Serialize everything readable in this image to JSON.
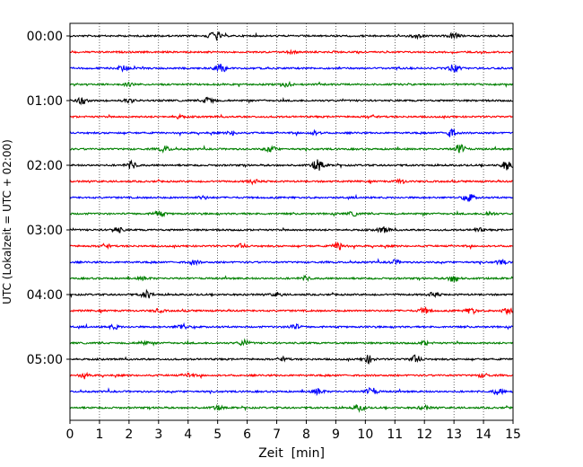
{
  "chart_data": {
    "type": "line",
    "title": "",
    "xlabel": "Zeit  [min]",
    "ylabel": "UTC (Lokalzeit = UTC + 02:00)",
    "xlim": [
      0,
      15
    ],
    "x_ticks": [
      "0",
      "1",
      "2",
      "3",
      "4",
      "5",
      "6",
      "7",
      "8",
      "9",
      "10",
      "11",
      "12",
      "13",
      "14",
      "15"
    ],
    "y_ticks": [
      "00:00",
      "01:00",
      "02:00",
      "03:00",
      "04:00",
      "05:00"
    ],
    "grid": "vertical dotted lines at each minute",
    "legend": "none",
    "trace_interval_min": 15,
    "trace_colors": [
      "#000000",
      "#ff0000",
      "#0000ff",
      "#008000"
    ],
    "series": [
      {
        "start": "00:00",
        "color": "#000000",
        "bursts": [
          {
            "x": 4.9,
            "amp": 6
          },
          {
            "x": 13.0,
            "amp": 3
          },
          {
            "x": 11.7,
            "amp": 2
          }
        ]
      },
      {
        "start": "00:15",
        "color": "#ff0000",
        "bursts": [
          {
            "x": 7.5,
            "amp": 1
          }
        ]
      },
      {
        "start": "00:30",
        "color": "#0000ff",
        "bursts": [
          {
            "x": 1.8,
            "amp": 3
          },
          {
            "x": 5.1,
            "amp": 5
          },
          {
            "x": 13.0,
            "amp": 4
          }
        ]
      },
      {
        "start": "00:45",
        "color": "#008000",
        "bursts": [
          {
            "x": 7.3,
            "amp": 3
          },
          {
            "x": 2.0,
            "amp": 1.5
          }
        ]
      },
      {
        "start": "01:00",
        "color": "#000000",
        "bursts": [
          {
            "x": 0.4,
            "amp": 4
          },
          {
            "x": 4.7,
            "amp": 4
          },
          {
            "x": 2.0,
            "amp": 2
          }
        ]
      },
      {
        "start": "01:15",
        "color": "#ff0000",
        "bursts": [
          {
            "x": 3.7,
            "amp": 1.5
          },
          {
            "x": 10.2,
            "amp": 1.5
          }
        ]
      },
      {
        "start": "01:30",
        "color": "#0000ff",
        "bursts": [
          {
            "x": 5.5,
            "amp": 2
          },
          {
            "x": 12.9,
            "amp": 4
          },
          {
            "x": 8.3,
            "amp": 2
          }
        ]
      },
      {
        "start": "01:45",
        "color": "#008000",
        "bursts": [
          {
            "x": 3.2,
            "amp": 3
          },
          {
            "x": 6.8,
            "amp": 3
          },
          {
            "x": 13.2,
            "amp": 5
          }
        ]
      },
      {
        "start": "02:00",
        "color": "#000000",
        "bursts": [
          {
            "x": 2.1,
            "amp": 4
          },
          {
            "x": 8.4,
            "amp": 6
          },
          {
            "x": 14.8,
            "amp": 5
          }
        ]
      },
      {
        "start": "02:15",
        "color": "#ff0000",
        "bursts": [
          {
            "x": 6.2,
            "amp": 2
          },
          {
            "x": 11.2,
            "amp": 2
          }
        ]
      },
      {
        "start": "02:30",
        "color": "#0000ff",
        "bursts": [
          {
            "x": 13.5,
            "amp": 4
          },
          {
            "x": 4.5,
            "amp": 1.5
          }
        ]
      },
      {
        "start": "02:45",
        "color": "#008000",
        "bursts": [
          {
            "x": 3.0,
            "amp": 3
          },
          {
            "x": 9.6,
            "amp": 2
          },
          {
            "x": 14.2,
            "amp": 2
          }
        ]
      },
      {
        "start": "03:00",
        "color": "#000000",
        "bursts": [
          {
            "x": 1.6,
            "amp": 3
          },
          {
            "x": 10.6,
            "amp": 3
          },
          {
            "x": 13.8,
            "amp": 2
          }
        ]
      },
      {
        "start": "03:15",
        "color": "#ff0000",
        "bursts": [
          {
            "x": 9.1,
            "amp": 4
          },
          {
            "x": 1.2,
            "amp": 2
          },
          {
            "x": 5.8,
            "amp": 2
          }
        ]
      },
      {
        "start": "03:30",
        "color": "#0000ff",
        "bursts": [
          {
            "x": 4.2,
            "amp": 2
          },
          {
            "x": 11.0,
            "amp": 2
          },
          {
            "x": 14.6,
            "amp": 2
          }
        ]
      },
      {
        "start": "03:45",
        "color": "#008000",
        "bursts": [
          {
            "x": 13.0,
            "amp": 4
          },
          {
            "x": 8.0,
            "amp": 2
          },
          {
            "x": 2.5,
            "amp": 1.5
          }
        ]
      },
      {
        "start": "04:00",
        "color": "#000000",
        "bursts": [
          {
            "x": 2.6,
            "amp": 4
          },
          {
            "x": 7.0,
            "amp": 2
          },
          {
            "x": 12.3,
            "amp": 2
          }
        ]
      },
      {
        "start": "04:15",
        "color": "#ff0000",
        "bursts": [
          {
            "x": 12.0,
            "amp": 3
          },
          {
            "x": 13.6,
            "amp": 3
          },
          {
            "x": 14.8,
            "amp": 3
          },
          {
            "x": 3.0,
            "amp": 1.5
          }
        ]
      },
      {
        "start": "04:30",
        "color": "#0000ff",
        "bursts": [
          {
            "x": 3.8,
            "amp": 3
          },
          {
            "x": 7.6,
            "amp": 3
          },
          {
            "x": 1.5,
            "amp": 2
          }
        ]
      },
      {
        "start": "04:45",
        "color": "#008000",
        "bursts": [
          {
            "x": 5.9,
            "amp": 3
          },
          {
            "x": 12.0,
            "amp": 2
          },
          {
            "x": 2.5,
            "amp": 2
          }
        ]
      },
      {
        "start": "05:00",
        "color": "#000000",
        "bursts": [
          {
            "x": 10.1,
            "amp": 4
          },
          {
            "x": 11.7,
            "amp": 4
          },
          {
            "x": 7.2,
            "amp": 2
          }
        ]
      },
      {
        "start": "05:15",
        "color": "#ff0000",
        "bursts": [
          {
            "x": 4.0,
            "amp": 2
          },
          {
            "x": 14.0,
            "amp": 2
          },
          {
            "x": 0.5,
            "amp": 2
          }
        ]
      },
      {
        "start": "05:30",
        "color": "#0000ff",
        "bursts": [
          {
            "x": 10.2,
            "amp": 4
          },
          {
            "x": 8.4,
            "amp": 3
          },
          {
            "x": 14.5,
            "amp": 3
          }
        ]
      },
      {
        "start": "05:45",
        "color": "#008000",
        "bursts": [
          {
            "x": 9.8,
            "amp": 3
          },
          {
            "x": 12.0,
            "amp": 2
          },
          {
            "x": 5.0,
            "amp": 2
          }
        ]
      }
    ]
  }
}
